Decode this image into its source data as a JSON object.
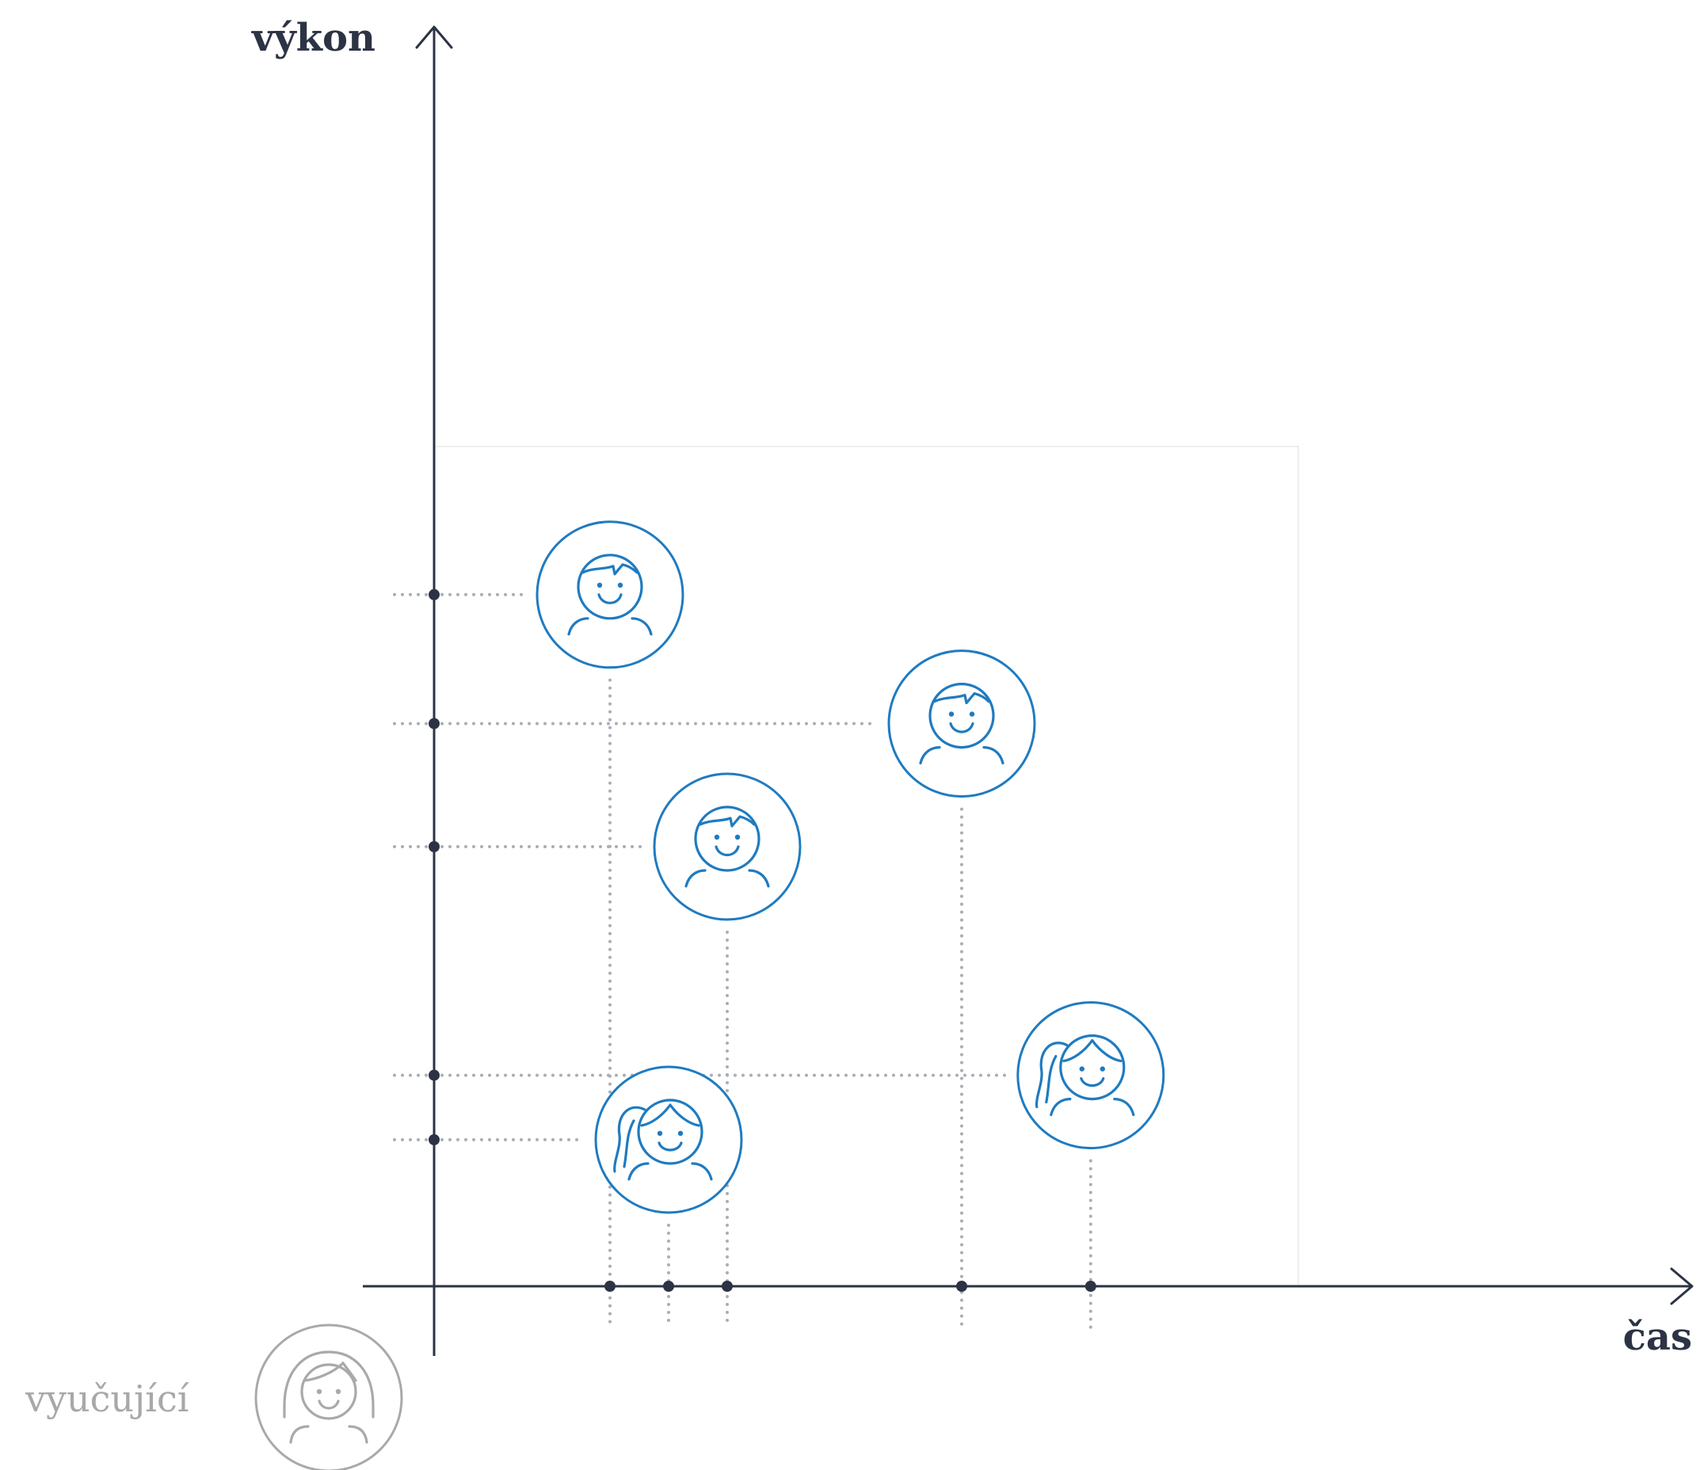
{
  "labels": {
    "y_axis": "výkon",
    "x_axis": "čas",
    "teacher": "vyučující"
  },
  "colors": {
    "axis": "#2c3344",
    "student": "#1f7bc0",
    "teacher": "#a9a9a9",
    "guide": "#a9aeb6",
    "zone": "#e8e8e8"
  },
  "students": [
    {
      "avatar": "boy-icon",
      "time": 1.5,
      "performance": 5.9
    },
    {
      "avatar": "boy-icon",
      "time": 4.5,
      "performance": 4.8
    },
    {
      "avatar": "boy-icon",
      "time": 2.5,
      "performance": 3.75
    },
    {
      "avatar": "girl-icon",
      "time": 5.6,
      "performance": 1.8
    },
    {
      "avatar": "girl-icon",
      "time": 2.0,
      "performance": 1.25
    }
  ]
}
